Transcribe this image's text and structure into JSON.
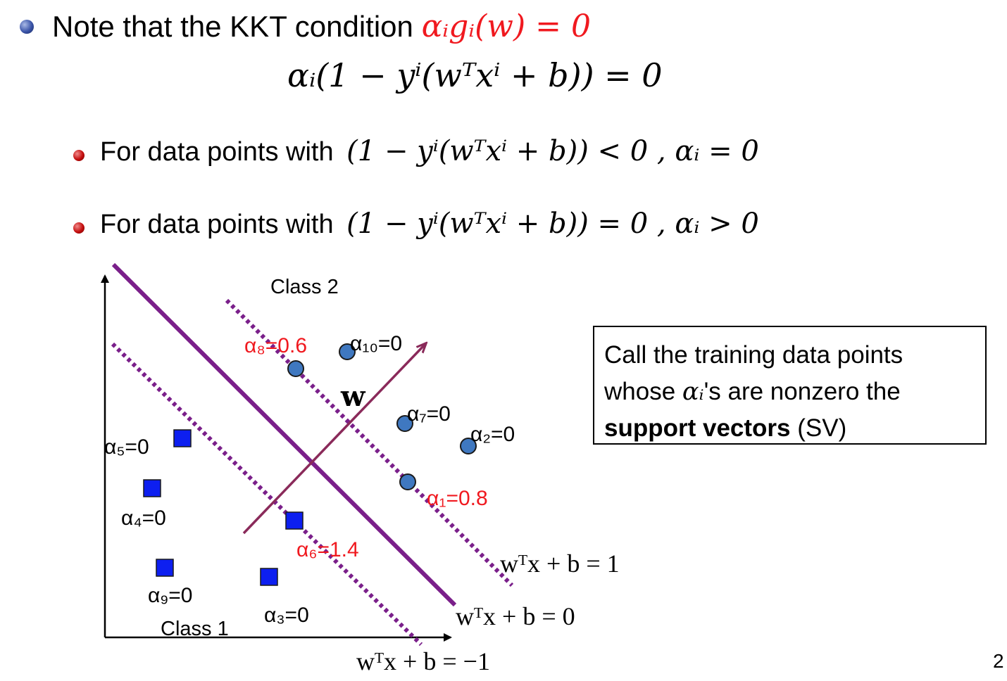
{
  "heading": {
    "text": "Note that the KKT condition",
    "condition": "αᵢgᵢ(w) = 0"
  },
  "main_equation": "αᵢ(1 − yⁱ(wᵀxⁱ + b)) = 0",
  "bullets": [
    {
      "prefix": "For data points with",
      "expr": "(1 − yⁱ(wᵀxⁱ + b)) < 0 , αᵢ = 0"
    },
    {
      "prefix": "For data points with",
      "expr": "(1 − yⁱ(wᵀxⁱ + b)) = 0 , αᵢ > 0"
    }
  ],
  "diagram": {
    "class2_label": "Class 2",
    "class1_label": "Class 1",
    "w_label": "w",
    "eq_plus": "wᵀx + b = 1",
    "eq_zero": "wᵀx + b = 0",
    "eq_minus": "wᵀx + b = −1",
    "alphas": {
      "a1": "α₁=0.8",
      "a2": "α₂=0",
      "a3": "α₃=0",
      "a4": "α₄=0",
      "a5": "α₅=0",
      "a6": "α₆=1.4",
      "a7": "α₇=0",
      "a8": "α₈=0.6",
      "a9": "α₉=0",
      "a10": "α₁₀=0"
    },
    "colors": {
      "boundary": "#7a1f8a",
      "margin": "#7a1f8a",
      "w_arrow": "#8a2a5a",
      "circle_fill": "#3f78c0",
      "square_fill": "#0d1ff0",
      "support_label": "#f0191f"
    }
  },
  "sv_box": {
    "line1": "Call the training data points",
    "line2_pre": "whose",
    "line2_math": "αᵢ",
    "line2_post": "'s are nonzero the",
    "line3_bold": "support vectors",
    "line3_post": "(SV)"
  },
  "page_number": "2"
}
